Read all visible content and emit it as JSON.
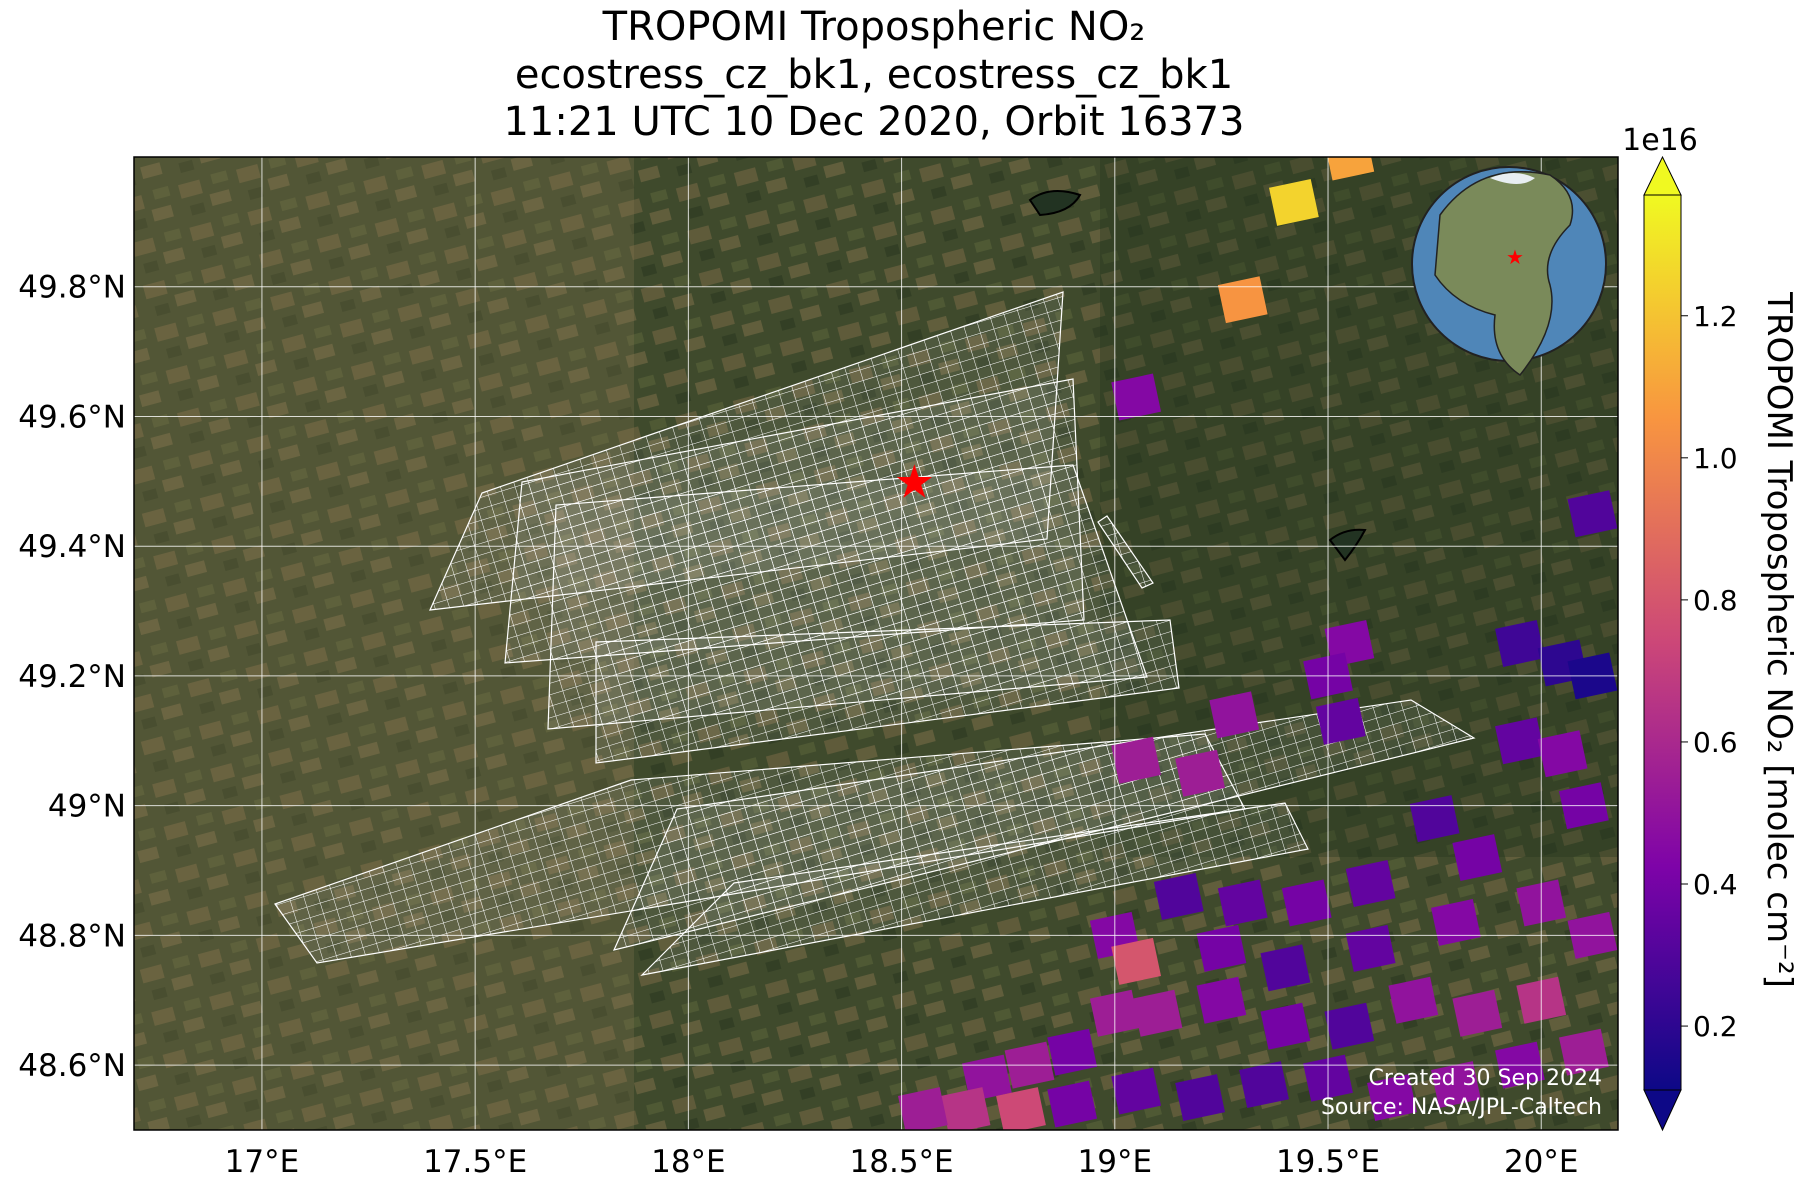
{
  "chart_data": {
    "type": "map",
    "title": [
      "TROPOMI Tropospheric NO₂",
      "ecostress_cz_bk1, ecostress_cz_bk1",
      "11:21 UTC 10 Dec 2020, Orbit 16373"
    ],
    "xlim": [
      16.7,
      20.18
    ],
    "ylim": [
      48.5,
      50.0
    ],
    "xticks": [
      {
        "value": 17,
        "label": "17°E"
      },
      {
        "value": 17.5,
        "label": "17.5°E"
      },
      {
        "value": 18,
        "label": "18°E"
      },
      {
        "value": 18.5,
        "label": "18.5°E"
      },
      {
        "value": 19,
        "label": "19°E"
      },
      {
        "value": 19.5,
        "label": "19.5°E"
      },
      {
        "value": 20,
        "label": "20°E"
      }
    ],
    "yticks": [
      {
        "value": 48.6,
        "label": "48.6°N"
      },
      {
        "value": 48.8,
        "label": "48.8°N"
      },
      {
        "value": 49,
        "label": "49°N"
      },
      {
        "value": 49.2,
        "label": "49.2°N"
      },
      {
        "value": 49.4,
        "label": "49.4°N"
      },
      {
        "value": 49.6,
        "label": "49.6°N"
      },
      {
        "value": 49.8,
        "label": "49.8°N"
      }
    ],
    "grid": true,
    "colormap": "plasma",
    "clim": [
      0.11,
      1.37
    ],
    "colorbar_label": "TROPOMI Tropospheric NO₂ [molec cm⁻²]",
    "colorbar_exponent": "1e16",
    "colorbar_ticks": [
      0.2,
      0.4,
      0.6,
      0.8,
      {
        "value": 1,
        "label": "1.0"
      },
      1.2
    ],
    "site": {
      "lon": 18.53,
      "lat": 49.5
    },
    "cells": {
      "lon": [
        19.42,
        19.55,
        19.3,
        19.05,
        20.12,
        19.55,
        19.5,
        19.28,
        19.53,
        19.05,
        19.2,
        19.95,
        20.05,
        20.12,
        19.95,
        20.05,
        20.1,
        19.75,
        19.85,
        19.6,
        19.45,
        19.3,
        19.15,
        19.0,
        19.05,
        19.25,
        19.4,
        19.6,
        19.8,
        20.0,
        20.12,
        20.0,
        19.85,
        19.7,
        19.55,
        19.4,
        19.25,
        19.1,
        19.0,
        18.9,
        18.8,
        18.7,
        18.65,
        18.78,
        18.9,
        19.05,
        19.2,
        19.35,
        19.5,
        19.65,
        19.8,
        19.95,
        20.1,
        18.55
      ],
      "lat": [
        49.93,
        50.0,
        49.78,
        49.63,
        49.45,
        49.25,
        49.2,
        49.14,
        49.13,
        49.07,
        49.05,
        49.25,
        49.22,
        49.2,
        49.1,
        49.08,
        49.0,
        48.98,
        48.92,
        48.88,
        48.85,
        48.85,
        48.86,
        48.8,
        48.76,
        48.78,
        48.75,
        48.78,
        48.82,
        48.85,
        48.8,
        48.7,
        48.68,
        48.7,
        48.66,
        48.66,
        48.7,
        48.68,
        48.68,
        48.62,
        48.6,
        48.58,
        48.53,
        48.53,
        48.54,
        48.56,
        48.55,
        48.57,
        48.58,
        48.55,
        48.57,
        48.6,
        48.62,
        48.53
      ],
      "values": [
        1.25,
        1.1,
        1.05,
        0.45,
        0.3,
        0.45,
        0.4,
        0.5,
        0.35,
        0.55,
        0.55,
        0.25,
        0.2,
        0.15,
        0.35,
        0.45,
        0.4,
        0.3,
        0.4,
        0.35,
        0.4,
        0.35,
        0.3,
        0.45,
        0.8,
        0.4,
        0.3,
        0.35,
        0.45,
        0.5,
        0.5,
        0.65,
        0.55,
        0.5,
        0.3,
        0.4,
        0.45,
        0.55,
        0.55,
        0.4,
        0.55,
        0.5,
        0.65,
        0.75,
        0.4,
        0.35,
        0.3,
        0.3,
        0.35,
        0.45,
        0.5,
        0.45,
        0.55,
        0.55
      ]
    },
    "footer": [
      "Created 30 Sep 2024",
      "Source: NASA/JPL-Caltech"
    ]
  }
}
